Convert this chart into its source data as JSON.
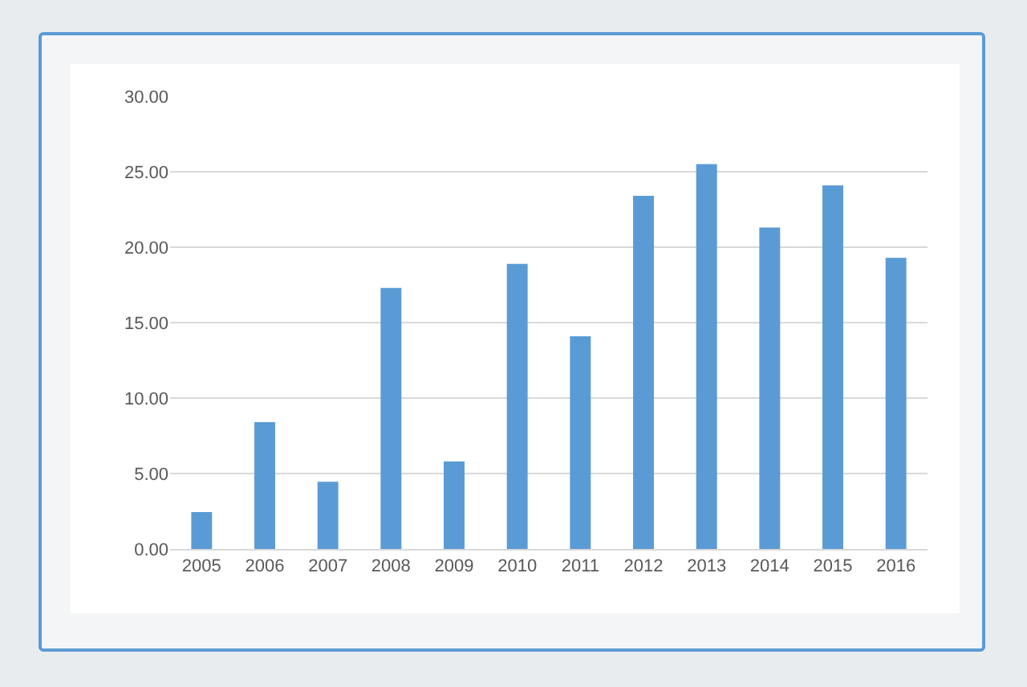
{
  "chart_data": {
    "type": "bar",
    "categories": [
      "2005",
      "2006",
      "2007",
      "2008",
      "2009",
      "2010",
      "2011",
      "2012",
      "2013",
      "2014",
      "2015",
      "2016"
    ],
    "values": [
      2.45,
      8.4,
      4.45,
      17.3,
      5.8,
      18.9,
      14.1,
      23.4,
      25.5,
      21.3,
      24.1,
      19.3
    ],
    "color": "#5b9bd5",
    "ylim": [
      0,
      30
    ],
    "yticks": [
      {
        "value": 0,
        "label": "0.00"
      },
      {
        "value": 5,
        "label": "5.00"
      },
      {
        "value": 10,
        "label": "10.00"
      },
      {
        "value": 15,
        "label": "15.00"
      },
      {
        "value": 20,
        "label": "20.00"
      },
      {
        "value": 25,
        "label": "25.00"
      },
      {
        "value": 30,
        "label": "30.00"
      }
    ],
    "grid": "y"
  }
}
